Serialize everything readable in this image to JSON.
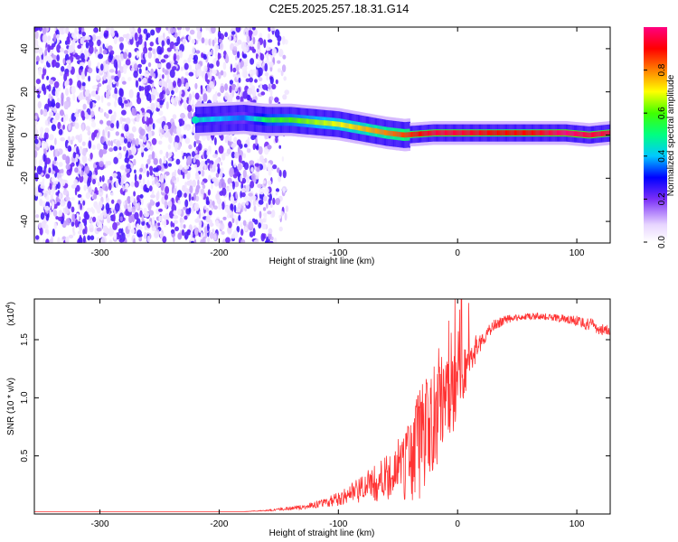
{
  "title": "C2E5.2025.257.18.31.G14",
  "colors": {
    "snr_line": "#ff3333",
    "scatter_purple": "#7b2ff7",
    "axis": "#000000"
  },
  "chart_data": [
    {
      "type": "heatmap",
      "title": "C2E5.2025.257.18.31.G14",
      "xlabel": "Height of straight line (km)",
      "ylabel": "Frequency (Hz)",
      "xlim": [
        -355,
        128
      ],
      "ylim": [
        -50,
        50
      ],
      "x_ticks": [
        -300,
        -200,
        -100,
        0,
        100
      ],
      "x_tick_labels": [
        "-300",
        "-200",
        "-100",
        "0",
        "100"
      ],
      "y_ticks": [
        -40,
        -20,
        0,
        20,
        40
      ],
      "y_tick_labels": [
        "-40",
        "-20",
        "0",
        "20",
        "40"
      ],
      "colorbar": {
        "label": "Normalized spectral amplitude",
        "range": [
          0,
          1
        ],
        "ticks": [
          0.0,
          0.2,
          0.4,
          0.6,
          0.8
        ],
        "tick_labels": [
          "0.0",
          "0.2",
          "0.4",
          "0.6",
          "0.8"
        ],
        "colormap": "rainbow-violet-to-red"
      },
      "noise_region": {
        "x_range": [
          -355,
          -155
        ],
        "freq_range": [
          -50,
          50
        ],
        "amplitude": 0.15
      },
      "signal_ridge": [
        {
          "x": -220,
          "freq": 7,
          "amplitude": 0.45
        },
        {
          "x": -180,
          "freq": 8,
          "amplitude": 0.35
        },
        {
          "x": -160,
          "freq": 7,
          "amplitude": 0.55
        },
        {
          "x": -140,
          "freq": 7,
          "amplitude": 0.6
        },
        {
          "x": -120,
          "freq": 6,
          "amplitude": 0.65
        },
        {
          "x": -100,
          "freq": 5,
          "amplitude": 0.7
        },
        {
          "x": -80,
          "freq": 3,
          "amplitude": 0.75
        },
        {
          "x": -60,
          "freq": 1,
          "amplitude": 0.8
        },
        {
          "x": -45,
          "freq": 0,
          "amplitude": 0.85
        },
        {
          "x": -20,
          "freq": 1,
          "amplitude": 0.95
        },
        {
          "x": 0,
          "freq": 1,
          "amplitude": 0.95
        },
        {
          "x": 30,
          "freq": 1,
          "amplitude": 0.9
        },
        {
          "x": 60,
          "freq": 1,
          "amplitude": 0.9
        },
        {
          "x": 90,
          "freq": 1,
          "amplitude": 1.0
        },
        {
          "x": 110,
          "freq": 0,
          "amplitude": 0.95
        },
        {
          "x": 128,
          "freq": 1,
          "amplitude": 0.95
        }
      ]
    },
    {
      "type": "line",
      "xlabel": "Height of straight line (km)",
      "ylabel": "SNR (10 * v/v)",
      "y_scale_note": "(x10",
      "y_scale_exp": "4",
      "y_scale_close": ")",
      "xlim": [
        -355,
        128
      ],
      "ylim": [
        0,
        1.85
      ],
      "x_ticks": [
        -300,
        -200,
        -100,
        0,
        100
      ],
      "x_tick_labels": [
        "-300",
        "-200",
        "-100",
        "0",
        "100"
      ],
      "y_ticks": [
        0.5,
        1.0,
        1.5
      ],
      "y_tick_labels": [
        "0.5",
        "1.0",
        "1.5"
      ],
      "series": [
        {
          "x": [
            -355,
            -300,
            -250,
            -200,
            -180,
            -160,
            -150,
            -140,
            -130,
            -120,
            -110,
            -100,
            -90,
            -80,
            -70,
            -60,
            -50,
            -40,
            -35,
            -30,
            -25,
            -20,
            -15,
            -10,
            -5,
            0,
            5,
            10,
            15,
            20,
            25,
            30,
            40,
            50,
            60,
            70,
            80,
            90,
            100,
            110,
            120,
            128
          ],
          "y": [
            0.02,
            0.02,
            0.02,
            0.02,
            0.02,
            0.03,
            0.04,
            0.05,
            0.06,
            0.08,
            0.1,
            0.13,
            0.17,
            0.22,
            0.26,
            0.3,
            0.36,
            0.45,
            0.55,
            0.65,
            0.72,
            0.8,
            0.9,
            0.96,
            1.02,
            1.1,
            1.2,
            1.32,
            1.42,
            1.5,
            1.56,
            1.62,
            1.67,
            1.69,
            1.7,
            1.7,
            1.69,
            1.68,
            1.66,
            1.63,
            1.59,
            1.57
          ],
          "noise": [
            0,
            0,
            0,
            0,
            0,
            0.005,
            0.01,
            0.015,
            0.02,
            0.03,
            0.04,
            0.06,
            0.08,
            0.12,
            0.16,
            0.2,
            0.25,
            0.35,
            0.45,
            0.5,
            0.45,
            0.5,
            0.45,
            0.4,
            0.35,
            0.3,
            0.25,
            0.18,
            0.12,
            0.08,
            0.06,
            0.05,
            0.04,
            0.03,
            0.03,
            0.03,
            0.03,
            0.04,
            0.05,
            0.06,
            0.05,
            0.04
          ]
        }
      ]
    }
  ]
}
